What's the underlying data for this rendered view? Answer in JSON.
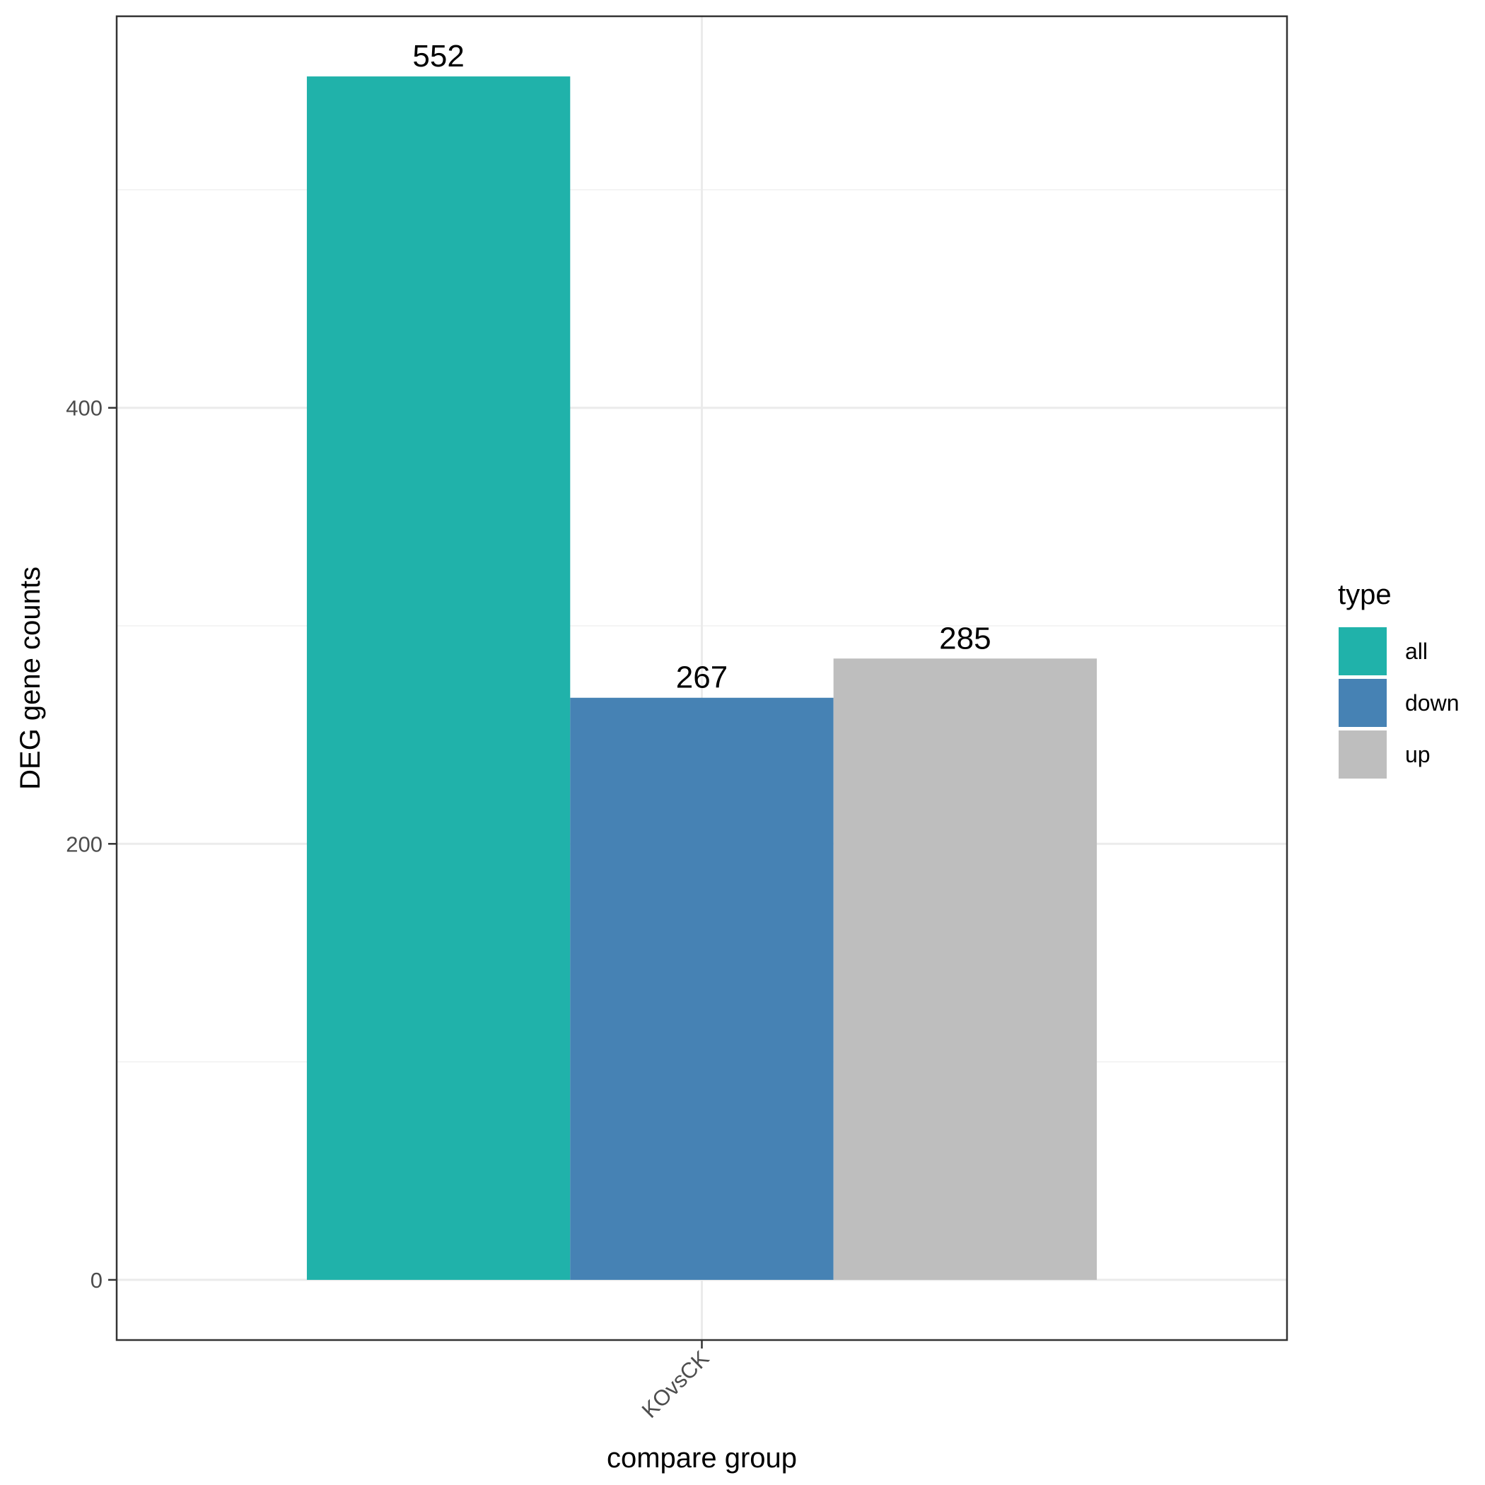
{
  "chart_data": {
    "type": "bar",
    "categories": [
      "KOvsCK"
    ],
    "series": [
      {
        "name": "all",
        "values": [
          552
        ],
        "color": "#20b2aa"
      },
      {
        "name": "down",
        "values": [
          267
        ],
        "color": "#4682b4"
      },
      {
        "name": "up",
        "values": [
          285
        ],
        "color": "#bebebe"
      }
    ],
    "xlabel": "compare group",
    "ylabel": "DEG gene counts",
    "yticks": [
      0,
      200,
      400
    ],
    "ylim": [
      -27.6,
      579.6
    ],
    "legend": {
      "title": "type",
      "position": "right"
    },
    "data_labels": true,
    "grid": true
  }
}
